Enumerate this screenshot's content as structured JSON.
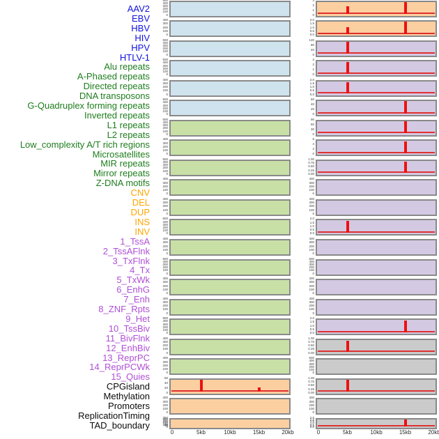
{
  "chart_data": {
    "type": "area",
    "description": "Grid of 44 mini profile plots (2 columns x 22 rows, column-major order) showing feature density around two anchor points at 5kb and 15kb over a 0-20kb window. Red spikes mark enrichment peaks.",
    "x_axis": {
      "tick_labels": [
        "0",
        "5kb",
        "10kb",
        "15kb",
        "20kb"
      ],
      "tick_values_kb": [
        0,
        5,
        10,
        15,
        20
      ],
      "domain_kb": [
        0,
        20
      ]
    },
    "colors": {
      "spike_red": "#ee1111",
      "baseline_red": "#e03030",
      "plot_border": "#898989",
      "tick_text": "#3a3a3a",
      "axis_text": "#2a2a2a"
    },
    "categories": {
      "virus": {
        "label_color": "#1212dd",
        "plot_bg": "#cfe3ee"
      },
      "repeats": {
        "label_color": "#1d7d1d",
        "plot_bg": "#c8e0a6"
      },
      "sv": {
        "label_color": "#ffa500",
        "plot_bg": "#fccfa1"
      },
      "chromatin": {
        "label_color": "#b04fd6",
        "plot_bg": "#d4c9e3"
      },
      "other": {
        "label_color": "#0a0a0a",
        "plot_bg": "#cbcbcb"
      }
    },
    "columns": [
      {
        "name": "left",
        "tracks": [
          {
            "label": "AAV2",
            "category": "virus",
            "y_ticks": [
              "500",
              "400",
              "300",
              "200",
              "100",
              "0"
            ],
            "baseline": false,
            "spikes": []
          },
          {
            "label": "EBV",
            "category": "virus",
            "y_ticks": [
              "400",
              "300",
              "200",
              "100",
              "0"
            ],
            "baseline": false,
            "spikes": []
          },
          {
            "label": "HBV",
            "category": "virus",
            "y_ticks": [
              "500",
              "400",
              "300",
              "200",
              "100",
              "0"
            ],
            "baseline": false,
            "spikes": []
          },
          {
            "label": "HIV",
            "category": "virus",
            "y_ticks": [
              "500",
              "400",
              "300",
              "200",
              "100",
              "0"
            ],
            "baseline": false,
            "spikes": []
          },
          {
            "label": "HPV",
            "category": "virus",
            "y_ticks": [
              "400",
              "300",
              "200",
              "100",
              "0"
            ],
            "baseline": false,
            "spikes": []
          },
          {
            "label": "HTLV-1",
            "category": "virus",
            "y_ticks": [
              "500",
              "400",
              "300",
              "200",
              "100",
              "0"
            ],
            "baseline": false,
            "spikes": []
          },
          {
            "label": "Alu repeats",
            "category": "repeats",
            "y_ticks": [
              "500",
              "400",
              "300",
              "200",
              "100",
              "0"
            ],
            "baseline": false,
            "spikes": []
          },
          {
            "label": "A-Phased repeats",
            "category": "repeats",
            "y_ticks": [
              "400",
              "300",
              "200",
              "100",
              "0"
            ],
            "baseline": false,
            "spikes": []
          },
          {
            "label": "Directed repeats",
            "category": "repeats",
            "y_ticks": [
              "500",
              "400",
              "300",
              "200",
              "100",
              "0"
            ],
            "baseline": false,
            "spikes": []
          },
          {
            "label": "DNA transposons",
            "category": "repeats",
            "y_ticks": [
              "400",
              "300",
              "200",
              "100",
              "0"
            ],
            "baseline": false,
            "spikes": []
          },
          {
            "label": "G-Quadruplex forming repeats",
            "category": "repeats",
            "y_ticks": [
              "400",
              "300",
              "200",
              "100",
              "0"
            ],
            "baseline": false,
            "spikes": []
          },
          {
            "label": "Inverted repeats",
            "category": "repeats",
            "y_ticks": [
              "500",
              "400",
              "300",
              "200",
              "100",
              "0"
            ],
            "baseline": false,
            "spikes": []
          },
          {
            "label": "L1 repeats",
            "category": "repeats",
            "y_ticks": [
              "400",
              "300",
              "200",
              "100",
              "0"
            ],
            "baseline": false,
            "spikes": []
          },
          {
            "label": "L2 repeats",
            "category": "repeats",
            "y_ticks": [
              "500",
              "400",
              "300",
              "200",
              "100",
              "0"
            ],
            "baseline": false,
            "spikes": []
          },
          {
            "label": "Low_complexity A/T rich regions",
            "category": "repeats",
            "y_ticks": [
              "400",
              "300",
              "200",
              "100",
              "0"
            ],
            "baseline": false,
            "spikes": []
          },
          {
            "label": "Microsatellites",
            "category": "repeats",
            "y_ticks": [
              "400",
              "300",
              "200",
              "100",
              "0"
            ],
            "baseline": false,
            "spikes": []
          },
          {
            "label": "MIR repeats",
            "category": "repeats",
            "y_ticks": [
              "500",
              "400",
              "300",
              "200",
              "100",
              "0"
            ],
            "baseline": false,
            "spikes": []
          },
          {
            "label": "Mirror repeats",
            "category": "repeats",
            "y_ticks": [
              "400",
              "300",
              "200",
              "100",
              "0"
            ],
            "baseline": false,
            "spikes": []
          },
          {
            "label": "Z-DNA motifs",
            "category": "repeats",
            "y_ticks": [
              "400",
              "300",
              "200",
              "100",
              "0"
            ],
            "baseline": false,
            "spikes": []
          },
          {
            "label": "CNV",
            "category": "sv",
            "y_ticks": [
              "60",
              "40",
              "20",
              "0"
            ],
            "baseline": true,
            "spikes": [
              {
                "x_kb": 5.1,
                "rel_height": 1.0
              },
              {
                "x_kb": 15.1,
                "rel_height": 0.38
              }
            ]
          },
          {
            "label": "DEL",
            "category": "sv",
            "y_ticks": [
              "400",
              "300",
              "200",
              "100",
              "0"
            ],
            "baseline": false,
            "spikes": []
          },
          {
            "label": "DUP",
            "category": "sv",
            "y_ticks": [
              "350",
              "300",
              "250",
              "200",
              "150",
              "100",
              "50",
              "0"
            ],
            "baseline": false,
            "spikes": []
          }
        ]
      },
      {
        "name": "right",
        "tracks": [
          {
            "label": "INS",
            "category": "sv",
            "y_ticks": [
              "3",
              "2",
              "1",
              "0"
            ],
            "baseline": true,
            "spikes": [
              {
                "x_kb": 5.1,
                "rel_height": 0.62
              },
              {
                "x_kb": 15.1,
                "rel_height": 1.0
              }
            ]
          },
          {
            "label": "INV",
            "category": "sv",
            "y_ticks": [
              "2.0",
              "1.5",
              "1.0",
              "0.5",
              "0.0"
            ],
            "baseline": true,
            "spikes": [
              {
                "x_kb": 5.1,
                "rel_height": 0.55
              },
              {
                "x_kb": 15.1,
                "rel_height": 1.0
              }
            ]
          },
          {
            "label": "1_TssA",
            "category": "chromatin",
            "y_ticks": [
              "120",
              "80",
              "40",
              "0"
            ],
            "baseline": true,
            "spikes": [
              {
                "x_kb": 5.1,
                "rel_height": 1.0
              }
            ]
          },
          {
            "label": "2_TssAFlnk",
            "category": "chromatin",
            "y_ticks": [
              "3",
              "2",
              "1",
              "0"
            ],
            "baseline": true,
            "spikes": [
              {
                "x_kb": 5.1,
                "rel_height": 0.95
              }
            ]
          },
          {
            "label": "3_TxFlnk",
            "category": "chromatin",
            "y_ticks": [
              "2.0",
              "1.5",
              "1.0",
              "0.5",
              "0.0"
            ],
            "baseline": true,
            "spikes": [
              {
                "x_kb": 5.1,
                "rel_height": 0.95
              }
            ]
          },
          {
            "label": "4_Tx",
            "category": "chromatin",
            "y_ticks": [
              "60",
              "40",
              "20",
              "0"
            ],
            "baseline": true,
            "spikes": [
              {
                "x_kb": 15.1,
                "rel_height": 1.0
              }
            ]
          },
          {
            "label": "5_TxWk",
            "category": "chromatin",
            "y_ticks": [
              "90",
              "60",
              "30",
              "0"
            ],
            "baseline": true,
            "spikes": [
              {
                "x_kb": 15.1,
                "rel_height": 1.0
              }
            ]
          },
          {
            "label": "6_EnhG",
            "category": "chromatin",
            "y_ticks": [
              "6",
              "4",
              "2",
              "0"
            ],
            "baseline": true,
            "spikes": [
              {
                "x_kb": 15.1,
                "rel_height": 0.95
              }
            ]
          },
          {
            "label": "7_Enh",
            "category": "chromatin",
            "y_ticks": [
              "1.00",
              "0.75",
              "0.50",
              "0.25",
              "0.00"
            ],
            "baseline": true,
            "spikes": [
              {
                "x_kb": 15.1,
                "rel_height": 0.95
              }
            ]
          },
          {
            "label": "8_ZNF_Rpts",
            "category": "chromatin",
            "y_ticks": [
              "400",
              "300",
              "200",
              "100",
              "0"
            ],
            "baseline": false,
            "spikes": []
          },
          {
            "label": "9_Het",
            "category": "chromatin",
            "y_ticks": [
              "400",
              "300",
              "200",
              "100",
              "0"
            ],
            "baseline": false,
            "spikes": []
          },
          {
            "label": "10_TssBiv",
            "category": "chromatin",
            "y_ticks": [
              "2.0",
              "1.5",
              "1.0",
              "0.5",
              "0.0"
            ],
            "baseline": true,
            "spikes": [
              {
                "x_kb": 5.1,
                "rel_height": 0.97
              }
            ]
          },
          {
            "label": "11_BivFlnk",
            "category": "chromatin",
            "y_ticks": [
              "400",
              "300",
              "200",
              "100",
              "0"
            ],
            "baseline": false,
            "spikes": []
          },
          {
            "label": "12_EnhBiv",
            "category": "chromatin",
            "y_ticks": [
              "500",
              "400",
              "300",
              "200",
              "100",
              "0"
            ],
            "baseline": false,
            "spikes": []
          },
          {
            "label": "13_ReprPC",
            "category": "chromatin",
            "y_ticks": [
              "400",
              "300",
              "200",
              "100",
              "0"
            ],
            "baseline": false,
            "spikes": []
          },
          {
            "label": "14_ReprPCWk",
            "category": "chromatin",
            "y_ticks": [
              "400",
              "300",
              "200",
              "100",
              "0"
            ],
            "baseline": false,
            "spikes": []
          },
          {
            "label": "15_Quies",
            "category": "chromatin",
            "y_ticks": [
              "2.0",
              "1.5",
              "1.0",
              "0.5",
              "0.0"
            ],
            "baseline": true,
            "spikes": [
              {
                "x_kb": 15.1,
                "rel_height": 0.95
              }
            ]
          },
          {
            "label": "CPGisland",
            "category": "other",
            "y_ticks": [
              "1.00",
              "0.75",
              "0.50",
              "0.25",
              "0.00"
            ],
            "baseline": true,
            "spikes": [
              {
                "x_kb": 5.1,
                "rel_height": 0.95
              }
            ]
          },
          {
            "label": "Methylation",
            "category": "other",
            "y_ticks": [
              "500",
              "400",
              "300",
              "200",
              "100",
              "0"
            ],
            "baseline": false,
            "spikes": []
          },
          {
            "label": "Promoters",
            "category": "other",
            "y_ticks": [
              "1.00",
              "0.75",
              "0.50",
              "0.25",
              "0.00"
            ],
            "baseline": true,
            "spikes": [
              {
                "x_kb": 5.1,
                "rel_height": 0.97
              }
            ]
          },
          {
            "label": "ReplicationTiming",
            "category": "other",
            "y_ticks": [
              "400",
              "300",
              "200",
              "100",
              "0"
            ],
            "baseline": false,
            "spikes": []
          },
          {
            "label": "TAD_boundary",
            "category": "other",
            "y_ticks": [
              "2.5",
              "2.0",
              "1.5",
              "1.0",
              "0.5",
              "0.0"
            ],
            "baseline": true,
            "spikes": [
              {
                "x_kb": 15.1,
                "rel_height": 1.0
              }
            ]
          }
        ]
      }
    ]
  }
}
